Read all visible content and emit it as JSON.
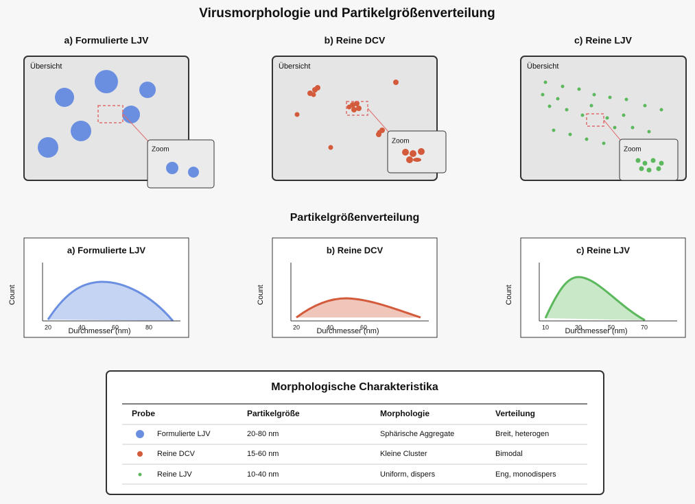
{
  "title": "Virusmorphologie und Partikelgrößenverteilung",
  "overview_panels": [
    {
      "title": "a) Formulierte LJV",
      "overview_label": "Übersicht",
      "zoom_label": "Zoom"
    },
    {
      "title": "b) Reine DCV",
      "overview_label": "Übersicht",
      "zoom_label": "Zoom"
    },
    {
      "title": "c) Reine LJV",
      "overview_label": "Übersicht",
      "zoom_label": "Zoom"
    }
  ],
  "distribution": {
    "title": "Partikelgrößenverteilung",
    "plots": [
      {
        "title": "a) Formulierte LJV",
        "y_label": "Count",
        "x_label": "Durchmesser (nm)",
        "x_ticks": [
          20,
          40,
          60,
          80
        ]
      },
      {
        "title": "b) Reine DCV",
        "y_label": "Count",
        "x_label": "Durchmesser (nm)",
        "x_ticks": [
          20,
          40,
          60
        ]
      },
      {
        "title": "c) Reine LJV",
        "y_label": "Count",
        "x_label": "Durchmesser (nm)",
        "x_ticks": [
          10,
          30,
          50,
          70
        ]
      }
    ]
  },
  "table": {
    "title": "Morphologische Charakteristika",
    "columns": [
      "Probe",
      "Partikelgröße",
      "Morphologie",
      "Verteilung"
    ],
    "rows": [
      [
        "Formulierte LJV",
        "20-80 nm",
        "Sphärische Aggregate",
        "Breit, heterogen"
      ],
      [
        "Reine DCV",
        "15-60 nm",
        "Kleine Cluster",
        "Bimodal"
      ],
      [
        "Reine LJV",
        "10-40 nm",
        "Uniform, dispers",
        "Eng, monodispers"
      ]
    ]
  }
}
